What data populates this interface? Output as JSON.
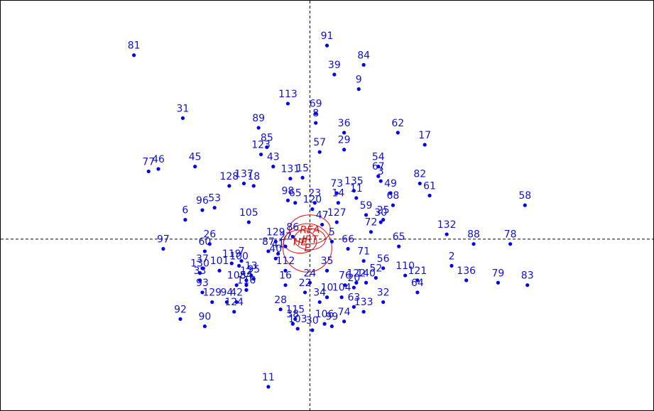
{
  "chart_data": {
    "type": "scatter",
    "title": "",
    "xlabel": "",
    "ylabel": "",
    "xlim": [
      -6.34,
      7.04
    ],
    "ylim": [
      -3.55,
      4.94
    ],
    "grid": false,
    "colors": {
      "points": "#0000ee",
      "labels": "#1010d0",
      "groups": "#dd1111"
    },
    "points": [
      {
        "label": "81",
        "x": -3.6,
        "y": 3.8
      },
      {
        "label": "91",
        "x": 0.35,
        "y": 4.0
      },
      {
        "label": "84",
        "x": 1.1,
        "y": 3.6
      },
      {
        "label": "39",
        "x": 0.5,
        "y": 3.4
      },
      {
        "label": "9",
        "x": 1.0,
        "y": 3.1
      },
      {
        "label": "113",
        "x": -0.45,
        "y": 2.8
      },
      {
        "label": "69",
        "x": 0.12,
        "y": 2.6
      },
      {
        "label": "31",
        "x": -2.6,
        "y": 2.5
      },
      {
        "label": "8",
        "x": 0.12,
        "y": 2.4
      },
      {
        "label": "89",
        "x": -1.05,
        "y": 2.3
      },
      {
        "label": "36",
        "x": 0.7,
        "y": 2.2
      },
      {
        "label": "62",
        "x": 1.8,
        "y": 2.2
      },
      {
        "label": "17",
        "x": 2.35,
        "y": 1.95
      },
      {
        "label": "85",
        "x": -0.88,
        "y": 1.9
      },
      {
        "label": "29",
        "x": 0.7,
        "y": 1.85
      },
      {
        "label": "57",
        "x": 0.2,
        "y": 1.8
      },
      {
        "label": "123",
        "x": -1.0,
        "y": 1.75
      },
      {
        "label": "77",
        "x": -3.3,
        "y": 1.4
      },
      {
        "label": "46",
        "x": -3.1,
        "y": 1.45
      },
      {
        "label": "45",
        "x": -2.35,
        "y": 1.5
      },
      {
        "label": "43",
        "x": -0.75,
        "y": 1.5
      },
      {
        "label": "54",
        "x": 1.4,
        "y": 1.5
      },
      {
        "label": "131",
        "x": -0.4,
        "y": 1.25
      },
      {
        "label": "15",
        "x": -0.15,
        "y": 1.27
      },
      {
        "label": "67",
        "x": 1.4,
        "y": 1.3
      },
      {
        "label": "3",
        "x": 1.45,
        "y": 1.2
      },
      {
        "label": "128",
        "x": -1.65,
        "y": 1.1
      },
      {
        "label": "137",
        "x": -1.35,
        "y": 1.15
      },
      {
        "label": "18",
        "x": -1.15,
        "y": 1.1
      },
      {
        "label": "82",
        "x": 2.25,
        "y": 1.15
      },
      {
        "label": "61",
        "x": 2.45,
        "y": 0.9
      },
      {
        "label": "49",
        "x": 1.65,
        "y": 0.95
      },
      {
        "label": "73",
        "x": 0.55,
        "y": 0.95
      },
      {
        "label": "135",
        "x": 0.9,
        "y": 1.0
      },
      {
        "label": "11",
        "x": 0.95,
        "y": 0.85
      },
      {
        "label": "68",
        "x": 1.7,
        "y": 0.7
      },
      {
        "label": "58",
        "x": 4.4,
        "y": 0.7
      },
      {
        "label": "14",
        "x": 0.58,
        "y": 0.75
      },
      {
        "label": "98",
        "x": -0.45,
        "y": 0.8
      },
      {
        "label": "65",
        "x": -0.3,
        "y": 0.75
      },
      {
        "label": "23",
        "x": 0.1,
        "y": 0.75
      },
      {
        "label": "120",
        "x": 0.05,
        "y": 0.62
      },
      {
        "label": "59",
        "x": 1.15,
        "y": 0.5
      },
      {
        "label": "96",
        "x": -2.2,
        "y": 0.6
      },
      {
        "label": "53",
        "x": -1.95,
        "y": 0.65
      },
      {
        "label": "6",
        "x": -2.55,
        "y": 0.4
      },
      {
        "label": "105",
        "x": -1.25,
        "y": 0.35
      },
      {
        "label": "127",
        "x": 0.55,
        "y": 0.35
      },
      {
        "label": "47",
        "x": 0.25,
        "y": 0.3
      },
      {
        "label": "25",
        "x": 1.5,
        "y": 0.4
      },
      {
        "label": "30",
        "x": 1.45,
        "y": 0.35
      },
      {
        "label": "72",
        "x": 1.25,
        "y": 0.15
      },
      {
        "label": "132",
        "x": 2.8,
        "y": 0.1
      },
      {
        "label": "88",
        "x": 3.35,
        "y": -0.1
      },
      {
        "label": "78",
        "x": 4.1,
        "y": -0.1
      },
      {
        "label": "65",
        "x": 1.82,
        "y": -0.15
      },
      {
        "label": "66",
        "x": 0.78,
        "y": -0.2
      },
      {
        "label": "5",
        "x": 0.45,
        "y": -0.05
      },
      {
        "label": "97",
        "x": -3.0,
        "y": -0.2
      },
      {
        "label": "26",
        "x": -2.05,
        "y": -0.1
      },
      {
        "label": "60",
        "x": -2.15,
        "y": -0.25
      },
      {
        "label": "129",
        "x": -0.7,
        "y": -0.05
      },
      {
        "label": "87",
        "x": -0.85,
        "y": -0.25
      },
      {
        "label": "86",
        "x": -0.35,
        "y": 0.05
      },
      {
        "label": "27",
        "x": -0.5,
        "y": -0.15
      },
      {
        "label": "41",
        "x": -0.65,
        "y": -0.3
      },
      {
        "label": "40",
        "x": -0.7,
        "y": -0.4
      },
      {
        "label": "71",
        "x": 1.1,
        "y": -0.45
      },
      {
        "label": "2",
        "x": 2.9,
        "y": -0.55
      },
      {
        "label": "136",
        "x": 3.2,
        "y": -0.85
      },
      {
        "label": "110",
        "x": 1.95,
        "y": -0.75
      },
      {
        "label": "121",
        "x": 2.2,
        "y": -0.85
      },
      {
        "label": "56",
        "x": 1.5,
        "y": -0.6
      },
      {
        "label": "79",
        "x": 3.85,
        "y": -0.9
      },
      {
        "label": "83",
        "x": 4.45,
        "y": -0.95
      },
      {
        "label": "64",
        "x": 2.2,
        "y": -1.1
      },
      {
        "label": "35",
        "x": 0.35,
        "y": -0.65
      },
      {
        "label": "112",
        "x": -0.5,
        "y": -0.65
      },
      {
        "label": "119",
        "x": -1.6,
        "y": -0.5
      },
      {
        "label": "100",
        "x": -1.45,
        "y": -0.55
      },
      {
        "label": "7",
        "x": -1.4,
        "y": -0.45
      },
      {
        "label": "37",
        "x": -2.2,
        "y": -0.6
      },
      {
        "label": "130",
        "x": -2.25,
        "y": -0.7
      },
      {
        "label": "101",
        "x": -1.85,
        "y": -0.65
      },
      {
        "label": "13",
        "x": -1.2,
        "y": -0.75
      },
      {
        "label": "12",
        "x": -1.3,
        "y": -0.85
      },
      {
        "label": "95",
        "x": -1.15,
        "y": -0.82
      },
      {
        "label": "33",
        "x": -2.25,
        "y": -0.85
      },
      {
        "label": "108",
        "x": -1.5,
        "y": -0.95
      },
      {
        "label": "54",
        "x": -1.3,
        "y": -0.95
      },
      {
        "label": "116",
        "x": -1.3,
        "y": -1.05
      },
      {
        "label": "93",
        "x": -2.2,
        "y": -1.1
      },
      {
        "label": "16",
        "x": -0.5,
        "y": -0.95
      },
      {
        "label": "24",
        "x": 0.0,
        "y": -0.9
      },
      {
        "label": "22",
        "x": -0.1,
        "y": -1.1
      },
      {
        "label": "76",
        "x": 0.72,
        "y": -0.95
      },
      {
        "label": "122",
        "x": 0.95,
        "y": -0.9
      },
      {
        "label": "20",
        "x": 0.9,
        "y": -1.0
      },
      {
        "label": "140",
        "x": 1.15,
        "y": -0.9
      },
      {
        "label": "52",
        "x": 1.35,
        "y": -0.8
      },
      {
        "label": "10",
        "x": 0.35,
        "y": -1.2
      },
      {
        "label": "104",
        "x": 0.65,
        "y": -1.2
      },
      {
        "label": "32",
        "x": 1.5,
        "y": -1.3
      },
      {
        "label": "34",
        "x": 0.2,
        "y": -1.3
      },
      {
        "label": "63",
        "x": 0.9,
        "y": -1.4
      },
      {
        "label": "133",
        "x": 1.1,
        "y": -1.5
      },
      {
        "label": "129",
        "x": -2.0,
        "y": -1.3
      },
      {
        "label": "94",
        "x": -1.7,
        "y": -1.3
      },
      {
        "label": "42",
        "x": -1.5,
        "y": -1.3
      },
      {
        "label": "124",
        "x": -1.55,
        "y": -1.5
      },
      {
        "label": "28",
        "x": -0.6,
        "y": -1.45
      },
      {
        "label": "115",
        "x": -0.3,
        "y": -1.65
      },
      {
        "label": "38",
        "x": -0.35,
        "y": -1.75
      },
      {
        "label": "74",
        "x": 0.7,
        "y": -1.7
      },
      {
        "label": "106",
        "x": 0.3,
        "y": -1.75
      },
      {
        "label": "99",
        "x": 0.45,
        "y": -1.8
      },
      {
        "label": "103",
        "x": -0.25,
        "y": -1.85
      },
      {
        "label": "30",
        "x": 0.05,
        "y": -1.88
      },
      {
        "label": "92",
        "x": -2.65,
        "y": -1.65
      },
      {
        "label": "90",
        "x": -2.15,
        "y": -1.8
      },
      {
        "label": "11",
        "x": -0.85,
        "y": -3.05
      }
    ],
    "groups": [
      {
        "label": "REA",
        "x": 0.0,
        "y": 0.2,
        "rx": 0.42,
        "ry": 0.3
      },
      {
        "label": "IRT",
        "x": 0.0,
        "y": 0.0,
        "rx": 0.32,
        "ry": 0.22
      },
      {
        "label": "HE",
        "x": -0.2,
        "y": -0.05,
        "rx": 0.34,
        "ry": 0.24
      },
      {
        "label": "E",
        "x": -0.05,
        "y": -0.18,
        "rx": 0.5,
        "ry": 0.5
      }
    ]
  }
}
